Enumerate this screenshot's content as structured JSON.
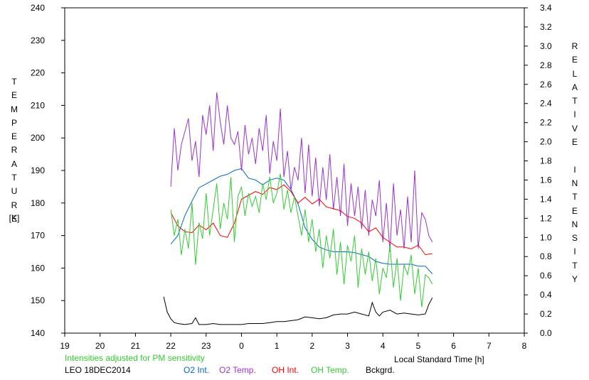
{
  "chart_data": {
    "type": "line",
    "left_axis": {
      "label": "TEMPERATURE",
      "unit": "[K]",
      "ylim": [
        140,
        240
      ],
      "ticks": [
        140,
        150,
        160,
        170,
        180,
        190,
        200,
        210,
        220,
        230,
        240
      ]
    },
    "right_axis": {
      "label": "RELATIVE INTENSITY",
      "ylim": [
        0.0,
        3.4
      ],
      "ticks": [
        "0.0",
        "0.2",
        "0.4",
        "0.6",
        "0.8",
        "1.0",
        "1.2",
        "1.4",
        "1.6",
        "1.8",
        "2.0",
        "2.2",
        "2.4",
        "2.6",
        "2.8",
        "3.0",
        "3.2",
        "3.4"
      ]
    },
    "x_axis": {
      "label": "Local Standard Time [h]",
      "xlim": [
        19,
        32
      ],
      "ticks": [
        "19",
        "20",
        "21",
        "22",
        "23",
        "0",
        "1",
        "2",
        "3",
        "4",
        "5",
        "6",
        "7",
        "8"
      ]
    },
    "note": "Intensities adjusted for PM sensitivity",
    "station_date": "LEO 18DEC2014",
    "series": [
      {
        "name": "O2 Int.",
        "color": "#0066cc",
        "axis": "right",
        "x": [
          22.0,
          22.2,
          22.4,
          22.6,
          22.8,
          23.0,
          23.2,
          23.4,
          23.6,
          23.8,
          24.0,
          24.2,
          24.4,
          24.6,
          24.8,
          25.0,
          25.2,
          25.4,
          25.6,
          25.8,
          26.0,
          26.2,
          26.4,
          26.6,
          26.8,
          27.0,
          27.2,
          27.4,
          27.6,
          27.8,
          28.0,
          28.2,
          28.4,
          28.6,
          28.8,
          29.0,
          29.2,
          29.4
        ],
        "y": [
          0.93,
          1.02,
          1.23,
          1.38,
          1.52,
          1.56,
          1.6,
          1.64,
          1.66,
          1.7,
          1.72,
          1.62,
          1.6,
          1.55,
          1.6,
          1.62,
          1.6,
          1.5,
          1.35,
          1.1,
          0.98,
          0.9,
          0.87,
          0.85,
          0.85,
          0.85,
          0.84,
          0.82,
          0.8,
          0.75,
          0.73,
          0.72,
          0.72,
          0.72,
          0.72,
          0.7,
          0.7,
          0.62
        ]
      },
      {
        "name": "O2 Temp.",
        "color": "#9933cc",
        "axis": "left",
        "x": [
          22.0,
          22.1,
          22.2,
          22.3,
          22.4,
          22.5,
          22.6,
          22.7,
          22.8,
          22.9,
          23.0,
          23.1,
          23.2,
          23.3,
          23.4,
          23.5,
          23.6,
          23.7,
          23.8,
          23.9,
          24.0,
          24.1,
          24.2,
          24.3,
          24.4,
          24.5,
          24.6,
          24.7,
          24.8,
          24.9,
          25.0,
          25.1,
          25.2,
          25.3,
          25.4,
          25.5,
          25.6,
          25.7,
          25.8,
          25.9,
          26.0,
          26.1,
          26.2,
          26.3,
          26.4,
          26.5,
          26.6,
          26.7,
          26.8,
          26.9,
          27.0,
          27.1,
          27.2,
          27.3,
          27.4,
          27.5,
          27.6,
          27.7,
          27.8,
          27.9,
          28.0,
          28.1,
          28.2,
          28.3,
          28.4,
          28.5,
          28.6,
          28.7,
          28.8,
          28.9,
          29.0,
          29.1,
          29.2,
          29.3,
          29.4
        ],
        "y": [
          185,
          203,
          190,
          198,
          202,
          206,
          193,
          199,
          188,
          207,
          201,
          210,
          196,
          214,
          205,
          198,
          210,
          200,
          198,
          202,
          190,
          204,
          195,
          200,
          192,
          203,
          196,
          207,
          189,
          199,
          193,
          209,
          188,
          196,
          184,
          191,
          187,
          200,
          183,
          198,
          182,
          194,
          179,
          191,
          181,
          195,
          178,
          188,
          176,
          192,
          173,
          186,
          176,
          185,
          172,
          184,
          170,
          181,
          176,
          187,
          168,
          180,
          165,
          186,
          170,
          178,
          166,
          182,
          168,
          190,
          166,
          177,
          175,
          170,
          168
        ]
      },
      {
        "name": "OH Int.",
        "color": "#ff0000",
        "axis": "right",
        "x": [
          22.0,
          22.2,
          22.4,
          22.6,
          22.8,
          23.0,
          23.2,
          23.4,
          23.6,
          23.8,
          24.0,
          24.2,
          24.4,
          24.6,
          24.8,
          25.0,
          25.2,
          25.4,
          25.6,
          25.8,
          26.0,
          26.2,
          26.4,
          26.6,
          26.8,
          27.0,
          27.2,
          27.4,
          27.6,
          27.8,
          28.0,
          28.2,
          28.4,
          28.6,
          28.8,
          29.0,
          29.2,
          29.4
        ],
        "y": [
          1.26,
          1.12,
          1.06,
          1.05,
          1.13,
          1.08,
          1.15,
          1.02,
          1.0,
          1.15,
          1.4,
          1.44,
          1.48,
          1.45,
          1.52,
          1.5,
          1.55,
          1.48,
          1.36,
          1.42,
          1.35,
          1.4,
          1.32,
          1.3,
          1.28,
          1.22,
          1.2,
          1.15,
          1.06,
          1.1,
          1.0,
          0.95,
          0.9,
          0.9,
          0.88,
          0.92,
          0.82,
          0.83
        ]
      },
      {
        "name": "OH Temp.",
        "color": "#33cc33",
        "axis": "left",
        "x": [
          22.0,
          22.1,
          22.2,
          22.3,
          22.4,
          22.5,
          22.6,
          22.7,
          22.8,
          22.9,
          23.0,
          23.1,
          23.2,
          23.3,
          23.4,
          23.5,
          23.6,
          23.7,
          23.8,
          23.9,
          24.0,
          24.1,
          24.2,
          24.3,
          24.4,
          24.5,
          24.6,
          24.7,
          24.8,
          24.9,
          25.0,
          25.1,
          25.2,
          25.3,
          25.4,
          25.5,
          25.6,
          25.7,
          25.8,
          25.9,
          26.0,
          26.1,
          26.2,
          26.3,
          26.4,
          26.5,
          26.6,
          26.7,
          26.8,
          26.9,
          27.0,
          27.1,
          27.2,
          27.3,
          27.4,
          27.5,
          27.6,
          27.7,
          27.8,
          27.9,
          28.0,
          28.1,
          28.2,
          28.3,
          28.4,
          28.5,
          28.6,
          28.7,
          28.8,
          28.9,
          29.0,
          29.1,
          29.2,
          29.3,
          29.4
        ],
        "y": [
          178,
          170,
          175,
          164,
          172,
          166,
          180,
          161,
          174,
          169,
          183,
          170,
          178,
          186,
          172,
          180,
          175,
          188,
          168,
          182,
          185,
          176,
          183,
          179,
          182,
          177,
          186,
          181,
          188,
          180,
          183,
          189,
          178,
          184,
          177,
          182,
          176,
          170,
          178,
          168,
          175,
          165,
          172,
          160,
          170,
          163,
          172,
          158,
          168,
          155,
          167,
          162,
          170,
          154,
          166,
          158,
          165,
          156,
          163,
          152,
          160,
          157,
          167,
          154,
          163,
          150,
          161,
          158,
          164,
          152,
          160,
          148,
          158,
          157,
          155
        ]
      },
      {
        "name": "Bckgrd.",
        "color": "#000000",
        "axis": "right",
        "x": [
          21.8,
          21.9,
          22.0,
          22.1,
          22.2,
          22.4,
          22.6,
          22.7,
          22.8,
          23.0,
          23.2,
          23.4,
          23.6,
          23.8,
          24.0,
          24.2,
          24.4,
          24.6,
          24.8,
          25.0,
          25.2,
          25.4,
          25.6,
          25.8,
          26.0,
          26.2,
          26.4,
          26.6,
          26.8,
          27.0,
          27.2,
          27.4,
          27.6,
          27.7,
          27.8,
          27.9,
          28.0,
          28.2,
          28.4,
          28.6,
          28.8,
          29.0,
          29.2,
          29.3,
          29.4
        ],
        "y": [
          0.38,
          0.22,
          0.15,
          0.11,
          0.1,
          0.09,
          0.1,
          0.16,
          0.09,
          0.09,
          0.1,
          0.09,
          0.09,
          0.09,
          0.09,
          0.1,
          0.1,
          0.1,
          0.11,
          0.12,
          0.12,
          0.13,
          0.14,
          0.17,
          0.16,
          0.15,
          0.16,
          0.19,
          0.2,
          0.2,
          0.22,
          0.2,
          0.18,
          0.32,
          0.22,
          0.18,
          0.22,
          0.24,
          0.2,
          0.21,
          0.2,
          0.19,
          0.2,
          0.3,
          0.37
        ]
      }
    ]
  }
}
